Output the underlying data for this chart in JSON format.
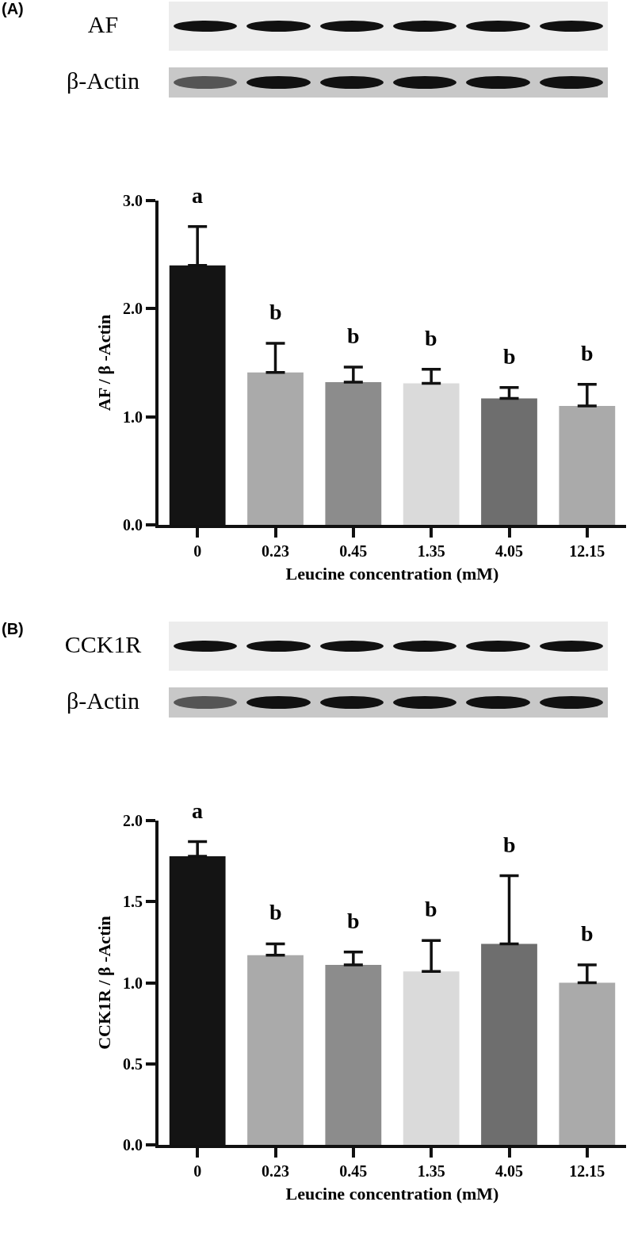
{
  "chart_data": [
    {
      "type": "bar",
      "xlabel": "Leucine concentration (mM)",
      "ylabel": "AF / β -Actin",
      "categories": [
        "0",
        "0.23",
        "0.45",
        "1.35",
        "4.05",
        "12.15"
      ],
      "values": [
        2.4,
        1.41,
        1.32,
        1.31,
        1.17,
        1.1
      ],
      "errors": [
        0.36,
        0.27,
        0.14,
        0.13,
        0.1,
        0.2
      ],
      "colors": [
        "#141414",
        "#aaaaaa",
        "#8c8c8c",
        "#dadada",
        "#6e6e6e",
        "#aaaaaa"
      ],
      "ylim": [
        0,
        3.0
      ],
      "yticks": [
        {
          "value": 0,
          "label": "0.0"
        },
        {
          "value": 1,
          "label": "1.0"
        },
        {
          "value": 2,
          "label": "2.0"
        },
        {
          "value": 3,
          "label": "3.0"
        }
      ],
      "annotations": [
        "(A)",
        "AF",
        "β-Actin",
        {
          "text": "a",
          "x": "0",
          "y": 2.76
        },
        {
          "text": "b",
          "x": "0.23",
          "y": 1.68
        },
        {
          "text": "b",
          "x": "0.45",
          "y": 1.46
        },
        {
          "text": "b",
          "x": "1.35",
          "y": 1.44
        },
        {
          "text": "b",
          "x": "4.05",
          "y": 1.27
        },
        {
          "text": "b",
          "x": "12.15",
          "y": 1.3
        }
      ]
    },
    {
      "type": "bar",
      "xlabel": "Leucine concentration (mM)",
      "ylabel": "CCK1R / β -Actin",
      "categories": [
        "0",
        "0.23",
        "0.45",
        "1.35",
        "4.05",
        "12.15"
      ],
      "values": [
        1.78,
        1.17,
        1.11,
        1.07,
        1.24,
        1.0
      ],
      "errors": [
        0.09,
        0.07,
        0.08,
        0.19,
        0.42,
        0.11
      ],
      "colors": [
        "#141414",
        "#aaaaaa",
        "#8c8c8c",
        "#dadada",
        "#6e6e6e",
        "#aaaaaa"
      ],
      "ylim": [
        0,
        2.0
      ],
      "yticks": [
        {
          "value": 0,
          "label": "0.0"
        },
        {
          "value": 0.5,
          "label": "0.5"
        },
        {
          "value": 1,
          "label": "1.0"
        },
        {
          "value": 1.5,
          "label": "1.5"
        },
        {
          "value": 2,
          "label": "2.0"
        }
      ],
      "annotations": [
        "(B)",
        "CCK1R",
        "β-Actin",
        {
          "text": "a",
          "x": "0",
          "y": 1.87
        },
        {
          "text": "b",
          "x": "0.23",
          "y": 1.24
        },
        {
          "text": "b",
          "x": "0.45",
          "y": 1.19
        },
        {
          "text": "b",
          "x": "1.35",
          "y": 1.26
        },
        {
          "text": "b",
          "x": "4.05",
          "y": 1.66
        },
        {
          "text": "b",
          "x": "12.15",
          "y": 1.11
        }
      ]
    }
  ]
}
